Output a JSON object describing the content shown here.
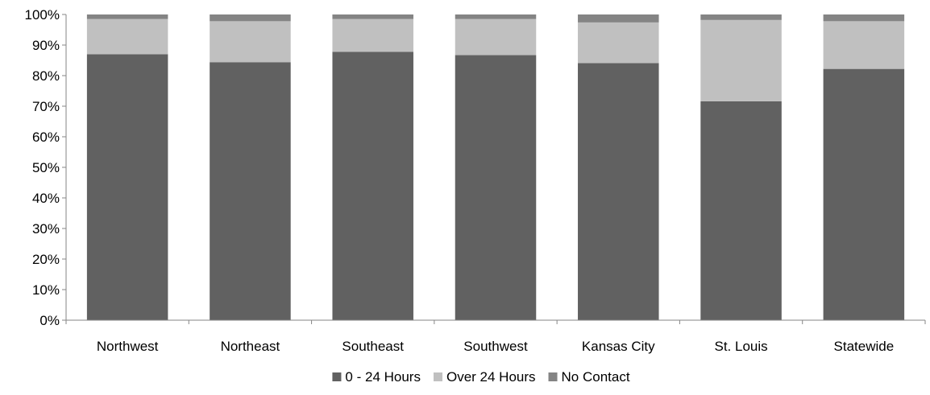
{
  "chart_data": {
    "type": "bar",
    "stacked": true,
    "percent_stacked": true,
    "title": "",
    "xlabel": "",
    "ylabel": "",
    "ylim": [
      0,
      100
    ],
    "y_ticks": [
      {
        "value": 0,
        "label": "0%"
      },
      {
        "value": 10,
        "label": "10%"
      },
      {
        "value": 20,
        "label": "20%"
      },
      {
        "value": 30,
        "label": "30%"
      },
      {
        "value": 40,
        "label": "40%"
      },
      {
        "value": 50,
        "label": "50%"
      },
      {
        "value": 60,
        "label": "60%"
      },
      {
        "value": 70,
        "label": "70%"
      },
      {
        "value": 80,
        "label": "80%"
      },
      {
        "value": 90,
        "label": "90%"
      },
      {
        "value": 100,
        "label": "100%"
      }
    ],
    "grid": false,
    "legend_position": "bottom",
    "categories": [
      "Northwest",
      "Northeast",
      "Southeast",
      "Southwest",
      "Kansas City",
      "St. Louis",
      "Statewide"
    ],
    "series": [
      {
        "name": "0 - 24 Hours",
        "color": "#616161",
        "values": [
          87.0,
          84.4,
          87.8,
          86.7,
          84.1,
          71.6,
          82.2
        ]
      },
      {
        "name": "Over 24 Hours",
        "color": "#c0c0c0",
        "values": [
          11.5,
          13.4,
          10.7,
          11.8,
          13.3,
          26.6,
          15.6
        ]
      },
      {
        "name": "No Contact",
        "color": "#848484",
        "values": [
          1.5,
          2.2,
          1.5,
          1.5,
          2.6,
          1.8,
          2.2
        ]
      }
    ]
  }
}
